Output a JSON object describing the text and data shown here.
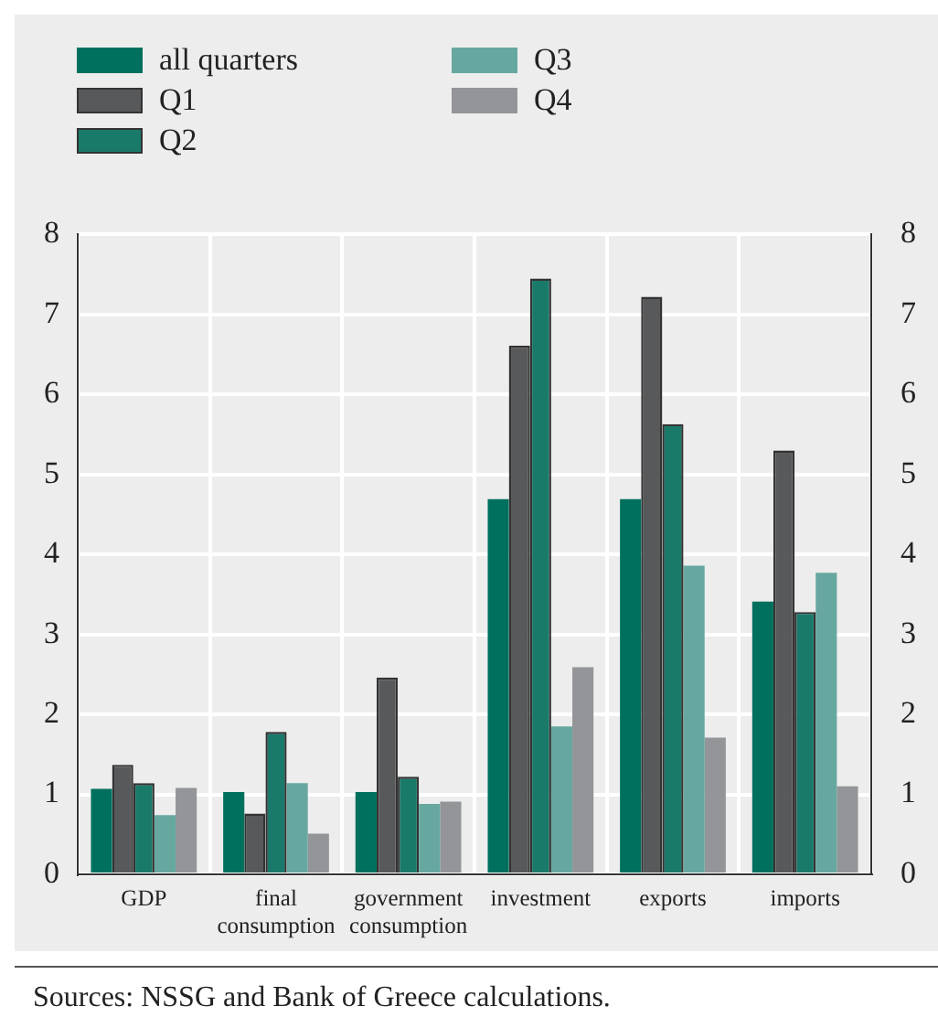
{
  "chart_data": {
    "type": "bar",
    "categories": [
      "GDP",
      "final consumption",
      "government consumption",
      "investment",
      "exports",
      "imports"
    ],
    "series": [
      {
        "name": "all quarters",
        "color": "#00705e",
        "values": [
          1.07,
          1.03,
          1.03,
          4.69,
          4.69,
          3.41
        ]
      },
      {
        "name": "Q1",
        "color": "#58595b",
        "values": [
          1.37,
          0.76,
          2.46,
          6.61,
          7.22,
          5.3
        ]
      },
      {
        "name": "Q2",
        "color": "#1a7a6a",
        "values": [
          1.14,
          1.78,
          1.22,
          7.45,
          5.63,
          3.28
        ]
      },
      {
        "name": "Q3",
        "color": "#66a8a0",
        "values": [
          0.74,
          1.14,
          0.88,
          1.85,
          3.86,
          3.77
        ]
      },
      {
        "name": "Q4",
        "color": "#939598",
        "values": [
          1.08,
          0.51,
          0.91,
          2.59,
          1.71,
          1.1
        ]
      }
    ],
    "ylim": [
      0,
      8
    ],
    "yticks": [
      0,
      1,
      2,
      3,
      4,
      5,
      6,
      7,
      8
    ],
    "y2lim": [
      0,
      8
    ],
    "y2ticks": [
      0,
      1,
      2,
      3,
      4,
      5,
      6,
      7,
      8
    ],
    "grid": true,
    "legend": "top left",
    "annotations": [
      "Sources: NSSG and Bank of Greece calculations."
    ]
  }
}
